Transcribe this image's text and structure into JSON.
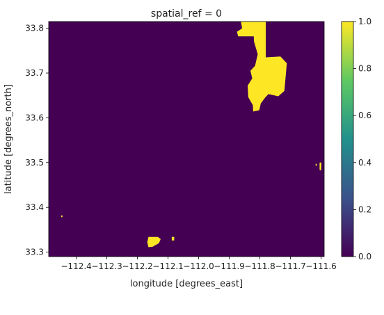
{
  "chart_data": {
    "type": "heatmap",
    "title": "spatial_ref = 0",
    "xlabel": "longitude [degrees_east]",
    "ylabel": "latitude [degrees_north]",
    "xlim": [
      -112.49,
      -111.59
    ],
    "ylim": [
      33.29,
      33.815
    ],
    "x_ticks": [
      {
        "value": -112.4,
        "label": "−112.4"
      },
      {
        "value": -112.3,
        "label": "−112.3"
      },
      {
        "value": -112.2,
        "label": "−112.2"
      },
      {
        "value": -112.1,
        "label": "−112.1"
      },
      {
        "value": -112.0,
        "label": "−112.0"
      },
      {
        "value": -111.9,
        "label": "−111.9"
      },
      {
        "value": -111.8,
        "label": "−111.8"
      },
      {
        "value": -111.7,
        "label": "−111.7"
      },
      {
        "value": -111.6,
        "label": "−111.6"
      }
    ],
    "y_ticks": [
      {
        "value": 33.3,
        "label": "33.3"
      },
      {
        "value": 33.4,
        "label": "33.4"
      },
      {
        "value": 33.5,
        "label": "33.5"
      },
      {
        "value": 33.6,
        "label": "33.6"
      },
      {
        "value": 33.7,
        "label": "33.7"
      },
      {
        "value": 33.8,
        "label": "33.8"
      }
    ],
    "colorbar": {
      "range": [
        0.0,
        1.0
      ],
      "ticks": [
        {
          "value": 0.0,
          "label": "0.0"
        },
        {
          "value": 0.2,
          "label": "0.2"
        },
        {
          "value": 0.4,
          "label": "0.4"
        },
        {
          "value": 0.6,
          "label": "0.6"
        },
        {
          "value": 0.8,
          "label": "0.8"
        },
        {
          "value": 1.0,
          "label": "1.0"
        }
      ],
      "colormap": "viridis",
      "colors": [
        "#440154",
        "#3b528b",
        "#21918c",
        "#5ec962",
        "#fde725"
      ]
    },
    "background_value": 0,
    "regions": [
      {
        "value": 1,
        "polygon": [
          [
            -111.862,
            33.815
          ],
          [
            -111.781,
            33.815
          ],
          [
            -111.781,
            33.735
          ],
          [
            -111.733,
            33.737
          ],
          [
            -111.712,
            33.722
          ],
          [
            -111.72,
            33.66
          ],
          [
            -111.74,
            33.648
          ],
          [
            -111.772,
            33.653
          ],
          [
            -111.783,
            33.645
          ],
          [
            -111.797,
            33.632
          ],
          [
            -111.802,
            33.617
          ],
          [
            -111.822,
            33.614
          ],
          [
            -111.823,
            33.628
          ],
          [
            -111.838,
            33.646
          ],
          [
            -111.84,
            33.672
          ],
          [
            -111.825,
            33.688
          ],
          [
            -111.831,
            33.705
          ],
          [
            -111.816,
            33.716
          ],
          [
            -111.807,
            33.742
          ],
          [
            -111.819,
            33.77
          ],
          [
            -111.82,
            33.782
          ],
          [
            -111.871,
            33.782
          ],
          [
            -111.875,
            33.792
          ],
          [
            -111.858,
            33.8
          ]
        ]
      },
      {
        "value": 1,
        "polygon": [
          [
            -112.164,
            33.334
          ],
          [
            -112.133,
            33.334
          ],
          [
            -112.124,
            33.329
          ],
          [
            -112.13,
            33.32
          ],
          [
            -112.15,
            33.312
          ],
          [
            -112.164,
            33.311
          ],
          [
            -112.168,
            33.322
          ]
        ]
      },
      {
        "value": 1,
        "polygon": [
          [
            -112.088,
            33.334
          ],
          [
            -112.08,
            33.334
          ],
          [
            -112.08,
            33.326
          ],
          [
            -112.088,
            33.326
          ]
        ]
      },
      {
        "value": 1,
        "polygon": [
          [
            -111.605,
            33.5
          ],
          [
            -111.599,
            33.5
          ],
          [
            -111.6,
            33.482
          ],
          [
            -111.605,
            33.484
          ]
        ]
      },
      {
        "value": 1,
        "polygon": [
          [
            -111.618,
            33.497
          ],
          [
            -111.614,
            33.497
          ],
          [
            -111.614,
            33.493
          ],
          [
            -111.618,
            33.493
          ]
        ]
      },
      {
        "value": 1,
        "polygon": [
          [
            -112.449,
            33.382
          ],
          [
            -112.445,
            33.382
          ],
          [
            -112.445,
            33.378
          ],
          [
            -112.449,
            33.378
          ]
        ]
      }
    ]
  }
}
